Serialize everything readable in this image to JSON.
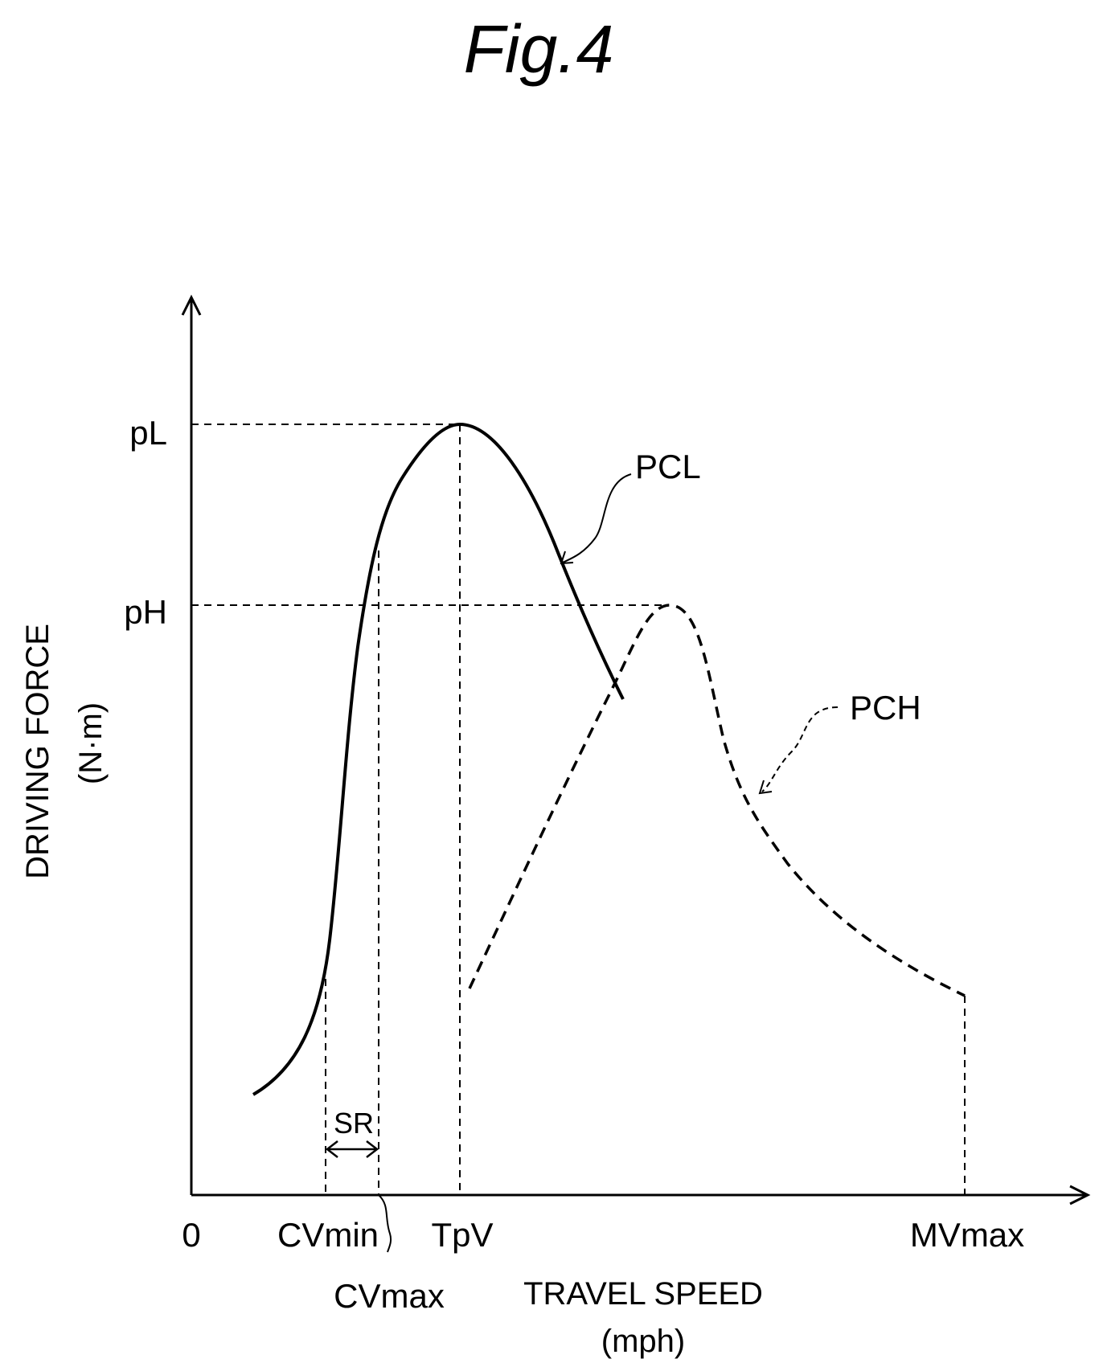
{
  "figure": {
    "title": "Fig.4"
  },
  "axes": {
    "y_label_line1": "DRIVING FORCE",
    "y_label_line2": "(N·m)",
    "x_label_line1": "TRAVEL SPEED",
    "x_label_line2": "(mph)",
    "origin": "0"
  },
  "x_ticks": {
    "cvmin": "CVmin",
    "cvmax": "CVmax",
    "tpv": "TpV",
    "mvmax": "MVmax"
  },
  "y_ticks": {
    "pl": "pL",
    "ph": "pH"
  },
  "annotations": {
    "sr": "SR"
  },
  "curves": {
    "pcl": "PCL",
    "pch": "PCH"
  },
  "colors": {
    "ink": "#000000",
    "background": "#ffffff"
  }
}
